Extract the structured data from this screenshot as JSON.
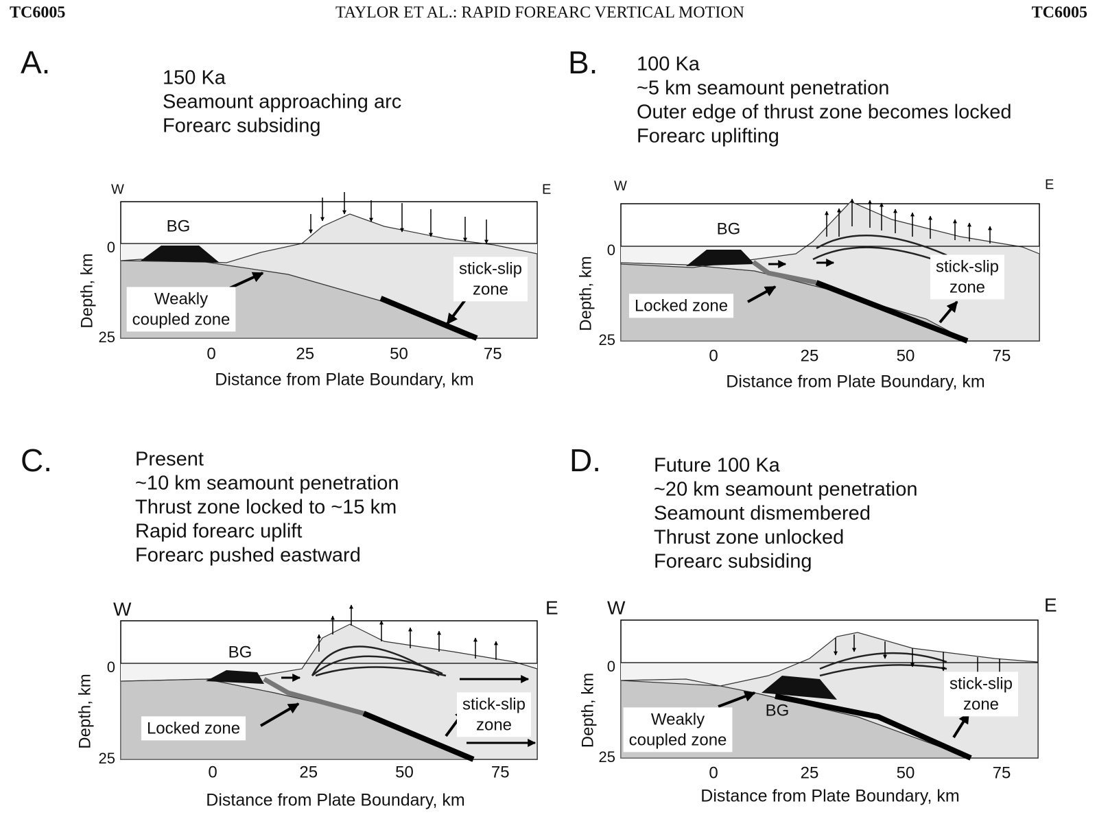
{
  "header": {
    "left": "TC6005",
    "title": "TAYLOR ET AL.: RAPID FOREARC VERTICAL MOTION",
    "right": "TC6005"
  },
  "panels": [
    {
      "label": "A.",
      "lines": [
        "150 Ka",
        "Seamount approaching arc",
        "Forearc subsiding"
      ],
      "west": "W",
      "east": "E",
      "depth_label": "Depth, km",
      "x_label": "Distance from Plate Boundary, km",
      "xticks": [
        0,
        25,
        50,
        75
      ],
      "yticks": [
        0,
        25
      ],
      "annotations": [
        [
          "BG"
        ],
        [
          "Weakly",
          "coupled zone"
        ],
        [
          "stick-slip",
          "zone"
        ]
      ]
    },
    {
      "label": "B.",
      "lines": [
        "100 Ka",
        "~5  km seamount penetration",
        "Outer edge of thrust zone becomes locked",
        "Forearc uplifting"
      ],
      "west": "W",
      "east": "E",
      "depth_label": "Depth, km",
      "x_label": "Distance from Plate Boundary, km",
      "xticks": [
        0,
        25,
        50,
        75
      ],
      "yticks": [
        0,
        25
      ],
      "annotations": [
        [
          "BG"
        ],
        [
          "Locked zone"
        ],
        [
          "stick-slip",
          "zone"
        ]
      ]
    },
    {
      "label": "C.",
      "lines": [
        "Present",
        "~10 km seamount penetration",
        "Thrust zone locked to ~15 km",
        "Rapid forearc uplift",
        "Forearc pushed eastward"
      ],
      "west": "W",
      "east": "E",
      "depth_label": "Depth, km",
      "x_label": "Distance from Plate Boundary, km",
      "xticks": [
        0,
        25,
        50,
        75
      ],
      "yticks": [
        0,
        25
      ],
      "annotations": [
        [
          "BG"
        ],
        [
          "Locked zone"
        ],
        [
          "stick-slip",
          "zone"
        ]
      ]
    },
    {
      "label": "D.",
      "lines": [
        "Future 100 Ka",
        "~20 km seamount penetration",
        "Seamount dismembered",
        "Thrust zone unlocked",
        "Forearc subsiding"
      ],
      "west": "W",
      "east": "E",
      "depth_label": "Depth, km",
      "x_label": "Distance from Plate Boundary, km",
      "xticks": [
        0,
        25,
        50,
        75
      ],
      "yticks": [
        0,
        25
      ],
      "annotations": [
        [
          "BG"
        ],
        [
          "Weakly",
          "coupled zone"
        ],
        [
          "stick-slip",
          "zone"
        ]
      ]
    }
  ]
}
